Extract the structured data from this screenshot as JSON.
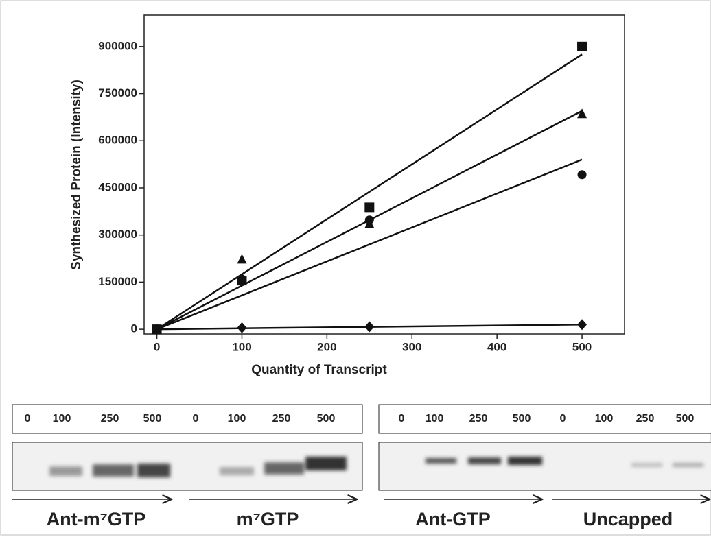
{
  "chart_data": {
    "type": "scatter",
    "x_label": "Quantity of Transcript",
    "y_label": "Synthesized Protein (Intensity)",
    "xlim": [
      -15,
      550
    ],
    "ylim": [
      -15000,
      1000000
    ],
    "xticks": [
      0,
      100,
      200,
      300,
      400,
      500
    ],
    "yticks": [
      0,
      150000,
      300000,
      450000,
      600000,
      750000,
      900000
    ],
    "series": [
      {
        "marker": "square",
        "color": "#111111",
        "x": [
          0,
          100,
          250,
          500
        ],
        "values": [
          0,
          155000,
          388000,
          900000
        ],
        "fit_x": [
          0,
          500
        ],
        "fit_values": [
          0,
          875000
        ]
      },
      {
        "marker": "triangle",
        "color": "#111111",
        "x": [
          0,
          100,
          250,
          500
        ],
        "values": [
          0,
          222000,
          335000,
          685000
        ],
        "fit_x": [
          0,
          500
        ],
        "fit_values": [
          0,
          695000
        ]
      },
      {
        "marker": "circle",
        "color": "#111111",
        "x": [
          0,
          100,
          250,
          500
        ],
        "values": [
          0,
          160000,
          348000,
          492000
        ],
        "fit_x": [
          0,
          500
        ],
        "fit_values": [
          0,
          540000
        ]
      },
      {
        "marker": "diamond",
        "color": "#111111",
        "x": [
          0,
          100,
          250,
          500
        ],
        "values": [
          0,
          5000,
          8000,
          15000
        ],
        "fit_x": [
          0,
          500
        ],
        "fit_values": [
          0,
          15000
        ]
      }
    ]
  },
  "gels": [
    {
      "lanes": [
        "0",
        "100",
        "250",
        "500",
        "0",
        "100",
        "250",
        "500"
      ],
      "groups": [
        "Ant-m⁷GTP",
        "m⁷GTP"
      ]
    },
    {
      "lanes": [
        "0",
        "100",
        "250",
        "500",
        "0",
        "100",
        "250",
        "500"
      ],
      "groups": [
        "Ant-GTP",
        "Uncapped"
      ]
    }
  ]
}
